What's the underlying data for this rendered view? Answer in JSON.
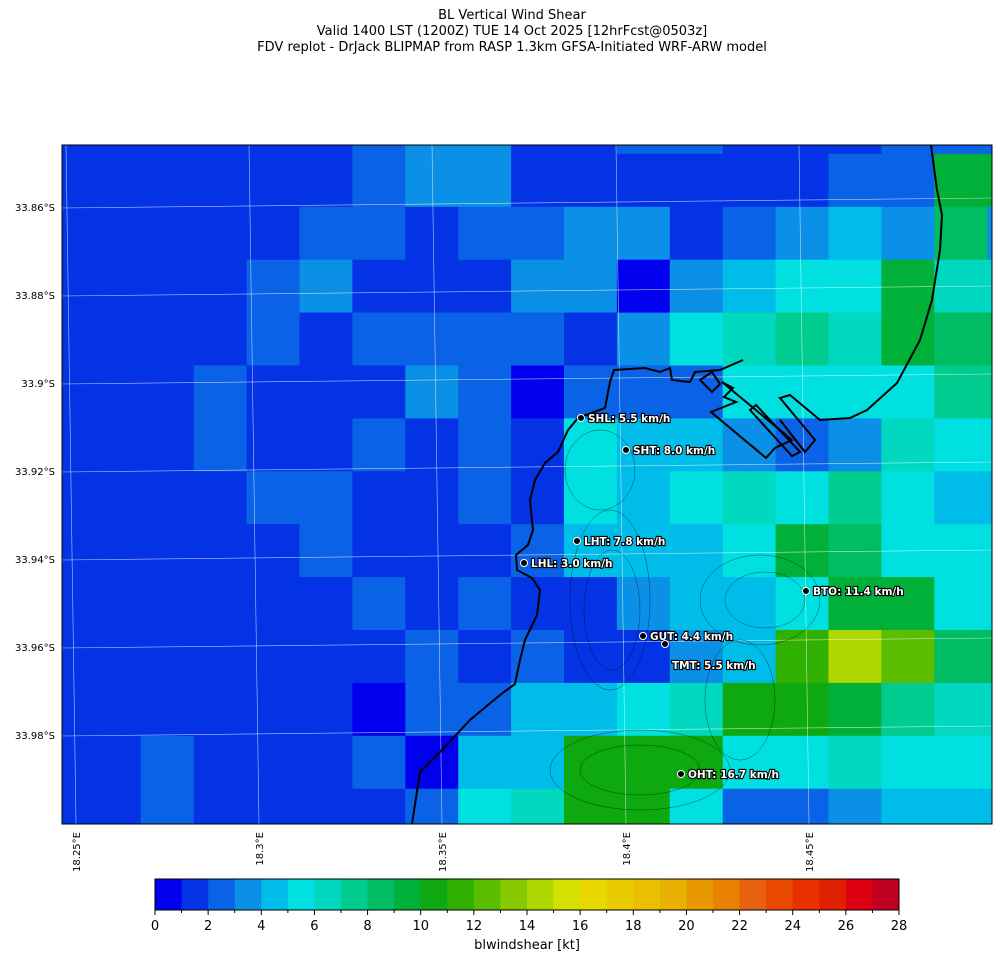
{
  "title": {
    "line1": "BL Vertical Wind Shear",
    "line2": "Valid 1400 LST (1200Z) TUE 14 Oct 2025 [12hrFcst@0503z]",
    "line3": "FDV replot - DrJack BLIPMAP from RASP 1.3km GFSA-Initiated WRF-ARW model"
  },
  "lat_labels": [
    "33.86°S",
    "33.88°S",
    "33.9°S",
    "33.92°S",
    "33.94°S",
    "33.96°S",
    "33.98°S"
  ],
  "lon_labels": [
    "18.25°E",
    "18.3°E",
    "18.35°E",
    "18.4°E",
    "18.45°E"
  ],
  "stations": [
    {
      "label": "SHL: 5.5 km/h"
    },
    {
      "label": "SHT: 8.0 km/h"
    },
    {
      "label": "LHT: 7.8 km/h"
    },
    {
      "label": "LHL: 3.0 km/h"
    },
    {
      "label": "BTO: 11.4 km/h"
    },
    {
      "label": "GUT: 4.4 km/h"
    },
    {
      "label": "TMT: 5.5 km/h"
    },
    {
      "label": "OHT: 16.7 km/h"
    }
  ],
  "colorbar": {
    "label": "blwindshear [kt]",
    "ticks": [
      "0",
      "2",
      "4",
      "6",
      "8",
      "10",
      "12",
      "14",
      "16",
      "18",
      "20",
      "22",
      "24",
      "26",
      "28"
    ],
    "colors": [
      "#0000ee",
      "#0433e6",
      "#0a62e6",
      "#0a90e6",
      "#00bce8",
      "#00e0e0",
      "#00d8c0",
      "#00cc90",
      "#00bc62",
      "#00b038",
      "#0ea810",
      "#30b000",
      "#5cbc00",
      "#88c800",
      "#b0d800",
      "#d4e000",
      "#e8d800",
      "#e8cc00",
      "#e8c000",
      "#e8b000",
      "#e89800",
      "#e88000",
      "#e86010",
      "#e84800",
      "#e83000",
      "#e02000",
      "#dc0010",
      "#c00020"
    ]
  },
  "chart_data": {
    "type": "heatmap",
    "title": "BL Vertical Wind Shear",
    "units": "kt",
    "range": [
      0,
      28
    ],
    "grid": [
      [
        1,
        1,
        1,
        1,
        1,
        1,
        2,
        3,
        3,
        1,
        1,
        2,
        2,
        1,
        1,
        1,
        2,
        2,
        2
      ],
      [
        1,
        1,
        1,
        1,
        1,
        1,
        2,
        3,
        3,
        1,
        1,
        1,
        1,
        1,
        1,
        2,
        2,
        9,
        9
      ],
      [
        1,
        1,
        1,
        1,
        1,
        2,
        2,
        1,
        2,
        2,
        3,
        3,
        1,
        2,
        3,
        4,
        3,
        8,
        3
      ],
      [
        1,
        1,
        1,
        1,
        2,
        3,
        1,
        1,
        1,
        3,
        3,
        0,
        3,
        4,
        5,
        5,
        9,
        6,
        6
      ],
      [
        1,
        1,
        1,
        1,
        2,
        1,
        2,
        2,
        2,
        2,
        1,
        3,
        5,
        6,
        7,
        6,
        9,
        8,
        8
      ],
      [
        1,
        1,
        1,
        2,
        1,
        1,
        1,
        3,
        2,
        0,
        2,
        2,
        2,
        5,
        5,
        5,
        5,
        7,
        7
      ],
      [
        1,
        1,
        1,
        2,
        1,
        1,
        2,
        1,
        2,
        1,
        5,
        4,
        4,
        3,
        2,
        3,
        6,
        5,
        5
      ],
      [
        1,
        1,
        1,
        1,
        2,
        2,
        1,
        1,
        2,
        1,
        5,
        4,
        5,
        6,
        5,
        7,
        5,
        4,
        4
      ],
      [
        1,
        1,
        1,
        1,
        1,
        2,
        1,
        1,
        1,
        2,
        4,
        4,
        4,
        5,
        9,
        8,
        5,
        5,
        5
      ],
      [
        1,
        1,
        1,
        1,
        1,
        1,
        2,
        1,
        2,
        1,
        1,
        3,
        4,
        4,
        5,
        9,
        9,
        5,
        5
      ],
      [
        1,
        1,
        1,
        1,
        1,
        1,
        1,
        2,
        1,
        2,
        1,
        1,
        3,
        4,
        11,
        14,
        12,
        8,
        8
      ],
      [
        1,
        1,
        1,
        1,
        1,
        1,
        0,
        2,
        2,
        4,
        4,
        5,
        6,
        10,
        10,
        9,
        7,
        6,
        6
      ],
      [
        1,
        1,
        2,
        1,
        1,
        1,
        2,
        0,
        4,
        4,
        10,
        10,
        10,
        5,
        5,
        6,
        5,
        5,
        5
      ],
      [
        1,
        1,
        2,
        1,
        1,
        1,
        1,
        2,
        5,
        6,
        10,
        10,
        5,
        2,
        2,
        3,
        4,
        4,
        4
      ]
    ]
  }
}
